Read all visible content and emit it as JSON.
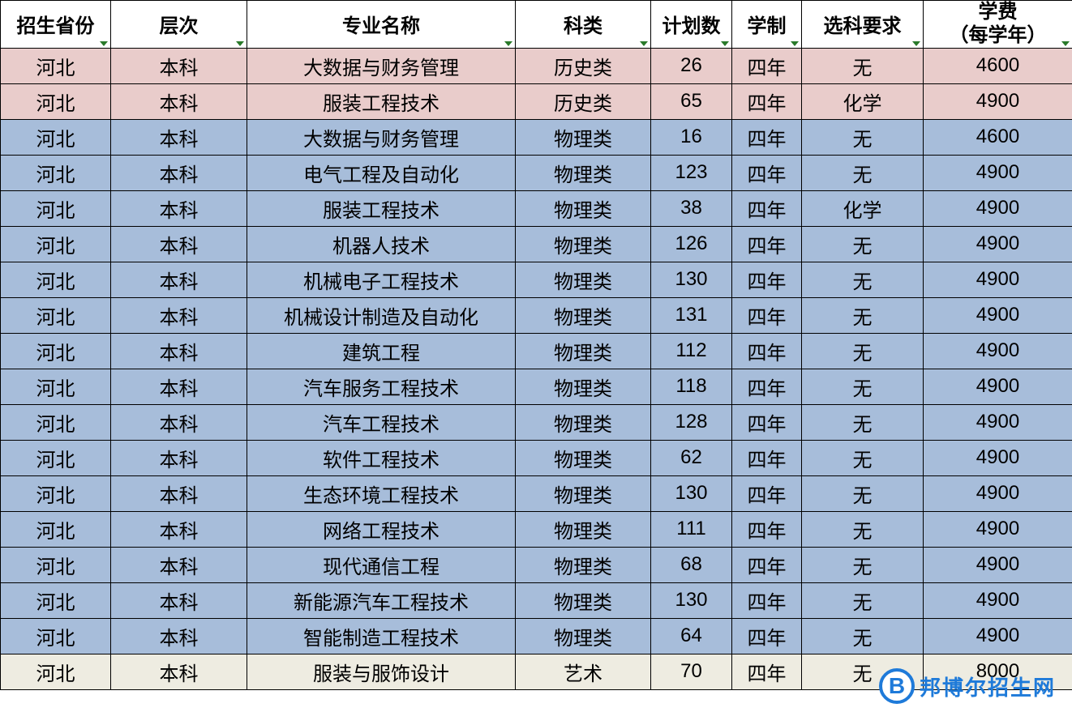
{
  "table": {
    "columns": [
      {
        "key": "province",
        "label": "招生省份",
        "class": "col-province",
        "two_line": false,
        "filter": "right"
      },
      {
        "key": "level",
        "label": "层次",
        "class": "col-level",
        "two_line": false,
        "filter": "right"
      },
      {
        "key": "major",
        "label": "专业名称",
        "class": "col-major",
        "two_line": false,
        "filter": "right"
      },
      {
        "key": "category",
        "label": "科类",
        "class": "col-category",
        "two_line": false,
        "filter": "right"
      },
      {
        "key": "plan",
        "label": "计划数",
        "class": "col-plan",
        "two_line": false,
        "filter": "right"
      },
      {
        "key": "duration",
        "label": "学制",
        "class": "col-duration",
        "two_line": false,
        "filter": "right"
      },
      {
        "key": "requirement",
        "label": "选科要求",
        "class": "col-requirement",
        "two_line": false,
        "filter": "right"
      },
      {
        "key": "tuition",
        "label": "学费\n（每学年）",
        "class": "col-tuition",
        "two_line": true,
        "filter": "right"
      }
    ],
    "rows": [
      {
        "row_class": "row-pink",
        "cells": [
          "河北",
          "本科",
          "大数据与财务管理",
          "历史类",
          "26",
          "四年",
          "无",
          "4600"
        ]
      },
      {
        "row_class": "row-pink",
        "cells": [
          "河北",
          "本科",
          "服装工程技术",
          "历史类",
          "65",
          "四年",
          "化学",
          "4900"
        ]
      },
      {
        "row_class": "row-blue",
        "cells": [
          "河北",
          "本科",
          "大数据与财务管理",
          "物理类",
          "16",
          "四年",
          "无",
          "4600"
        ]
      },
      {
        "row_class": "row-blue",
        "cells": [
          "河北",
          "本科",
          "电气工程及自动化",
          "物理类",
          "123",
          "四年",
          "无",
          "4900"
        ]
      },
      {
        "row_class": "row-blue",
        "cells": [
          "河北",
          "本科",
          "服装工程技术",
          "物理类",
          "38",
          "四年",
          "化学",
          "4900"
        ]
      },
      {
        "row_class": "row-blue",
        "cells": [
          "河北",
          "本科",
          "机器人技术",
          "物理类",
          "126",
          "四年",
          "无",
          "4900"
        ]
      },
      {
        "row_class": "row-blue",
        "cells": [
          "河北",
          "本科",
          "机械电子工程技术",
          "物理类",
          "130",
          "四年",
          "无",
          "4900"
        ]
      },
      {
        "row_class": "row-blue",
        "cells": [
          "河北",
          "本科",
          "机械设计制造及自动化",
          "物理类",
          "131",
          "四年",
          "无",
          "4900"
        ]
      },
      {
        "row_class": "row-blue",
        "cells": [
          "河北",
          "本科",
          "建筑工程",
          "物理类",
          "112",
          "四年",
          "无",
          "4900"
        ]
      },
      {
        "row_class": "row-blue",
        "cells": [
          "河北",
          "本科",
          "汽车服务工程技术",
          "物理类",
          "118",
          "四年",
          "无",
          "4900"
        ]
      },
      {
        "row_class": "row-blue",
        "cells": [
          "河北",
          "本科",
          "汽车工程技术",
          "物理类",
          "128",
          "四年",
          "无",
          "4900"
        ]
      },
      {
        "row_class": "row-blue",
        "cells": [
          "河北",
          "本科",
          "软件工程技术",
          "物理类",
          "62",
          "四年",
          "无",
          "4900"
        ]
      },
      {
        "row_class": "row-blue",
        "cells": [
          "河北",
          "本科",
          "生态环境工程技术",
          "物理类",
          "130",
          "四年",
          "无",
          "4900"
        ]
      },
      {
        "row_class": "row-blue",
        "cells": [
          "河北",
          "本科",
          "网络工程技术",
          "物理类",
          "111",
          "四年",
          "无",
          "4900"
        ]
      },
      {
        "row_class": "row-blue",
        "cells": [
          "河北",
          "本科",
          "现代通信工程",
          "物理类",
          "68",
          "四年",
          "无",
          "4900"
        ]
      },
      {
        "row_class": "row-blue",
        "cells": [
          "河北",
          "本科",
          "新能源汽车工程技术",
          "物理类",
          "130",
          "四年",
          "无",
          "4900"
        ]
      },
      {
        "row_class": "row-blue",
        "cells": [
          "河北",
          "本科",
          "智能制造工程技术",
          "物理类",
          "64",
          "四年",
          "无",
          "4900"
        ]
      },
      {
        "row_class": "row-cream",
        "cells": [
          "河北",
          "本科",
          "服装与服饰设计",
          "艺术",
          "70",
          "四年",
          "无",
          "8000"
        ]
      }
    ],
    "header_background": "#ffffff",
    "row_colors": {
      "pink": "#e9cccb",
      "blue": "#a7bdda",
      "cream": "#eeece1"
    },
    "border_color": "#000000",
    "font_size": 24,
    "header_font_weight": "bold"
  },
  "watermark": {
    "icon_letter": "B",
    "text": "邦博尔招生网",
    "color": "#1e7ad9"
  }
}
